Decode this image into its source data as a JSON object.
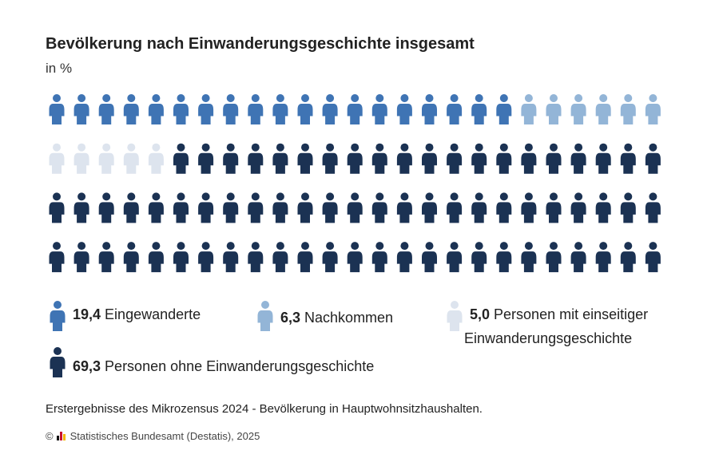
{
  "chart_data": {
    "type": "pictogram",
    "title": "Bevölkerung nach Einwanderungsgeschichte insgesamt",
    "subtitle": "in %",
    "series": [
      {
        "name": "Eingewanderte",
        "value": 19.4,
        "value_label": "19,4",
        "color": "#3f74b4"
      },
      {
        "name": "Nachkommen",
        "value": 6.3,
        "value_label": "6,3",
        "color": "#93b5d7"
      },
      {
        "name": "Personen mit einseitiger Einwanderungsgeschichte",
        "value": 5.0,
        "value_label": "5,0",
        "color": "#dde4ee"
      },
      {
        "name": "Personen ohne Einwanderungsgeschichte",
        "value": 69.3,
        "value_label": "69,3",
        "color": "#1b3253"
      }
    ],
    "icons": [
      19,
      6,
      5,
      70
    ],
    "grid": {
      "rows": 4,
      "columns": 25
    }
  },
  "legend": {
    "items": [
      {
        "value": "19,4",
        "label": "Eingewanderte"
      },
      {
        "value": "6,3",
        "label": "Nachkommen"
      },
      {
        "value": "5,0",
        "label_line1": "Personen mit einseitiger",
        "label_line2": "Einwanderungsgeschichte"
      },
      {
        "value": "69,3",
        "label": "Personen ohne Einwanderungsgeschichte"
      }
    ]
  },
  "footnote": "Erstergebnisse des Mikrozensus 2024 - Bevölkerung in Hauptwohnsitzhaushalten.",
  "source": {
    "copyright": "©",
    "text": "Statistisches Bundesamt (Destatis), 2025",
    "logo_colors": [
      "#111111",
      "#c8102e",
      "#f2b700"
    ]
  }
}
